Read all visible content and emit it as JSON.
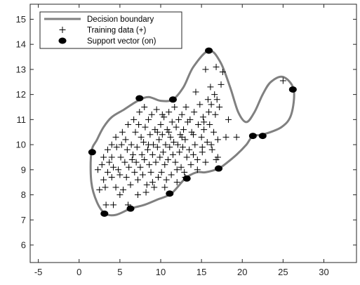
{
  "chart_data": {
    "type": "scatter",
    "title": "",
    "xlabel": "",
    "ylabel": "",
    "xlim": [
      -6,
      34
    ],
    "ylim": [
      5.3,
      15.6
    ],
    "x_ticks": [
      -5,
      0,
      5,
      10,
      15,
      20,
      25,
      30
    ],
    "y_ticks": [
      6,
      7,
      8,
      9,
      10,
      11,
      12,
      13,
      14,
      15
    ],
    "grid": false,
    "legend_position": "top-left",
    "colors": {
      "boundary": "#808080",
      "training": "#000000",
      "support": "#000000",
      "axis": "#262626"
    },
    "legend": [
      {
        "label": "Decision boundary",
        "marker": "line"
      },
      {
        "label": "Training data (+)",
        "marker": "plus"
      },
      {
        "label": "Support vector (on)",
        "marker": "dot"
      }
    ],
    "boundary": [
      [
        1.5,
        9.7
      ],
      [
        2.2,
        10.2
      ],
      [
        3.0,
        10.7
      ],
      [
        4.0,
        11.1
      ],
      [
        5.5,
        11.4
      ],
      [
        7.2,
        11.75
      ],
      [
        8.5,
        11.9
      ],
      [
        10.0,
        11.75
      ],
      [
        11.5,
        11.8
      ],
      [
        12.8,
        12.3
      ],
      [
        14.0,
        13.1
      ],
      [
        15.9,
        13.75
      ],
      [
        17.3,
        13.3
      ],
      [
        18.5,
        12.3
      ],
      [
        19.5,
        11.3
      ],
      [
        20.5,
        10.9
      ],
      [
        21.5,
        11.3
      ],
      [
        22.5,
        12.0
      ],
      [
        23.5,
        12.5
      ],
      [
        25.0,
        12.7
      ],
      [
        26.3,
        12.2
      ],
      [
        26.0,
        11.2
      ],
      [
        24.8,
        10.7
      ],
      [
        22.5,
        10.4
      ],
      [
        21.3,
        10.35
      ],
      [
        20.5,
        10.0
      ],
      [
        19.3,
        9.6
      ],
      [
        18.0,
        9.25
      ],
      [
        17.1,
        9.05
      ],
      [
        15.5,
        8.9
      ],
      [
        14.4,
        8.9
      ],
      [
        13.0,
        8.65
      ],
      [
        11.3,
        8.05
      ],
      [
        9.5,
        7.8
      ],
      [
        8.0,
        7.6
      ],
      [
        6.3,
        7.45
      ],
      [
        4.5,
        7.2
      ],
      [
        3.2,
        7.25
      ],
      [
        2.2,
        7.7
      ],
      [
        1.5,
        8.5
      ],
      [
        1.5,
        9.7
      ]
    ],
    "support_vectors": [
      [
        1.6,
        9.7
      ],
      [
        3.1,
        7.25
      ],
      [
        6.3,
        7.45
      ],
      [
        7.4,
        11.85
      ],
      [
        11.5,
        11.8
      ],
      [
        15.9,
        13.75
      ],
      [
        11.1,
        8.05
      ],
      [
        13.2,
        8.65
      ],
      [
        17.1,
        9.05
      ],
      [
        21.3,
        10.35
      ],
      [
        22.5,
        10.35
      ],
      [
        26.2,
        12.2
      ]
    ],
    "training_data": [
      [
        2.3,
        9.0
      ],
      [
        2.5,
        8.2
      ],
      [
        2.8,
        9.2
      ],
      [
        3.0,
        8.6
      ],
      [
        3.2,
        8.3
      ],
      [
        3.5,
        9.8
      ],
      [
        3.3,
        7.6
      ],
      [
        4.2,
        7.6
      ],
      [
        4.0,
        8.7
      ],
      [
        4.0,
        9.5
      ],
      [
        4.2,
        9.1
      ],
      [
        4.5,
        8.3
      ],
      [
        4.6,
        9.9
      ],
      [
        4.5,
        10.3
      ],
      [
        4.8,
        9.0
      ],
      [
        5.0,
        8.8
      ],
      [
        5.1,
        9.5
      ],
      [
        5.2,
        10.0
      ],
      [
        5.3,
        10.5
      ],
      [
        5.4,
        8.2
      ],
      [
        5.6,
        9.3
      ],
      [
        5.7,
        10.2
      ],
      [
        5.8,
        8.7
      ],
      [
        5.9,
        9.8
      ],
      [
        6.0,
        10.8
      ],
      [
        6.1,
        9.1
      ],
      [
        6.3,
        8.4
      ],
      [
        6.4,
        10.0
      ],
      [
        6.6,
        9.6
      ],
      [
        6.7,
        11.0
      ],
      [
        6.8,
        8.9
      ],
      [
        6.9,
        10.5
      ],
      [
        7.0,
        9.3
      ],
      [
        7.1,
        9.9
      ],
      [
        7.2,
        8.6
      ],
      [
        7.3,
        10.8
      ],
      [
        7.4,
        11.3
      ],
      [
        7.5,
        9.1
      ],
      [
        7.6,
        10.3
      ],
      [
        7.7,
        9.6
      ],
      [
        7.8,
        8.8
      ],
      [
        7.9,
        10.1
      ],
      [
        8.0,
        11.5
      ],
      [
        8.0,
        9.4
      ],
      [
        8.1,
        10.7
      ],
      [
        8.3,
        8.4
      ],
      [
        8.4,
        9.8
      ],
      [
        8.5,
        11.0
      ],
      [
        8.6,
        9.2
      ],
      [
        8.7,
        10.4
      ],
      [
        8.8,
        8.9
      ],
      [
        8.9,
        11.2
      ],
      [
        9.0,
        9.6
      ],
      [
        9.1,
        10.0
      ],
      [
        9.2,
        8.3
      ],
      [
        9.3,
        10.6
      ],
      [
        9.4,
        9.3
      ],
      [
        9.5,
        11.4
      ],
      [
        9.6,
        9.9
      ],
      [
        9.7,
        8.7
      ],
      [
        9.8,
        10.2
      ],
      [
        9.9,
        9.5
      ],
      [
        10.0,
        10.8
      ],
      [
        10.1,
        8.9
      ],
      [
        10.2,
        10.4
      ],
      [
        10.3,
        9.7
      ],
      [
        10.4,
        11.1
      ],
      [
        10.5,
        9.2
      ],
      [
        10.6,
        10.0
      ],
      [
        10.7,
        8.6
      ],
      [
        10.8,
        10.6
      ],
      [
        10.9,
        9.4
      ],
      [
        11.0,
        11.3
      ],
      [
        11.1,
        9.9
      ],
      [
        11.2,
        10.3
      ],
      [
        11.3,
        8.8
      ],
      [
        11.4,
        10.9
      ],
      [
        11.5,
        9.6
      ],
      [
        11.6,
        10.1
      ],
      [
        11.7,
        11.5
      ],
      [
        11.8,
        9.3
      ],
      [
        11.9,
        10.7
      ],
      [
        12.0,
        8.5
      ],
      [
        12.1,
        10.0
      ],
      [
        12.2,
        11.0
      ],
      [
        12.3,
        9.7
      ],
      [
        12.4,
        10.4
      ],
      [
        12.5,
        9.1
      ],
      [
        12.6,
        11.2
      ],
      [
        12.7,
        9.9
      ],
      [
        12.8,
        10.6
      ],
      [
        12.9,
        8.9
      ],
      [
        13.0,
        10.2
      ],
      [
        13.1,
        11.5
      ],
      [
        13.2,
        9.5
      ],
      [
        13.3,
        10.9
      ],
      [
        13.5,
        9.8
      ],
      [
        13.6,
        11.0
      ],
      [
        13.7,
        9.2
      ],
      [
        13.8,
        10.5
      ],
      [
        14.0,
        9.6
      ],
      [
        14.1,
        11.3
      ],
      [
        14.2,
        10.0
      ],
      [
        14.3,
        12.1
      ],
      [
        14.5,
        9.4
      ],
      [
        14.6,
        10.8
      ],
      [
        14.8,
        11.6
      ],
      [
        15.0,
        10.3
      ],
      [
        15.1,
        9.7
      ],
      [
        15.2,
        11.1
      ],
      [
        15.3,
        10.6
      ],
      [
        15.5,
        13.0
      ],
      [
        15.5,
        9.3
      ],
      [
        15.7,
        10.1
      ],
      [
        15.8,
        11.8
      ],
      [
        15.9,
        11.3
      ],
      [
        16.0,
        10.8
      ],
      [
        16.1,
        12.3
      ],
      [
        16.2,
        11.6
      ],
      [
        16.3,
        9.8
      ],
      [
        16.5,
        10.5
      ],
      [
        16.6,
        12.0
      ],
      [
        16.7,
        11.2
      ],
      [
        16.8,
        13.1
      ],
      [
        16.9,
        11.8
      ],
      [
        17.0,
        10.2
      ],
      [
        17.2,
        11.5
      ],
      [
        17.4,
        12.4
      ],
      [
        17.6,
        12.9
      ],
      [
        18.0,
        10.3
      ],
      [
        18.3,
        11.0
      ],
      [
        19.3,
        10.3
      ],
      [
        25.0,
        12.55
      ],
      [
        16.8,
        9.4
      ],
      [
        17.0,
        9.5
      ],
      [
        14.5,
        9.0
      ],
      [
        13.0,
        8.7
      ],
      [
        12.0,
        9.0
      ],
      [
        10.5,
        8.3
      ],
      [
        9.0,
        8.5
      ],
      [
        8.2,
        8.1
      ],
      [
        7.2,
        8.0
      ],
      [
        6.0,
        7.6
      ],
      [
        5.0,
        8.0
      ],
      [
        3.5,
        8.9
      ],
      [
        3.0,
        9.5
      ],
      [
        4.0,
        10.0
      ],
      [
        3.7,
        9.3
      ],
      [
        6.5,
        9.4
      ],
      [
        8.5,
        10.0
      ],
      [
        9.6,
        10.5
      ],
      [
        10.2,
        11.2
      ],
      [
        11.0,
        10.5
      ],
      [
        12.6,
        10.3
      ],
      [
        14.0,
        10.4
      ],
      [
        15.3,
        10.9
      ],
      [
        16.2,
        10.0
      ],
      [
        15.1,
        9.9
      ]
    ]
  }
}
